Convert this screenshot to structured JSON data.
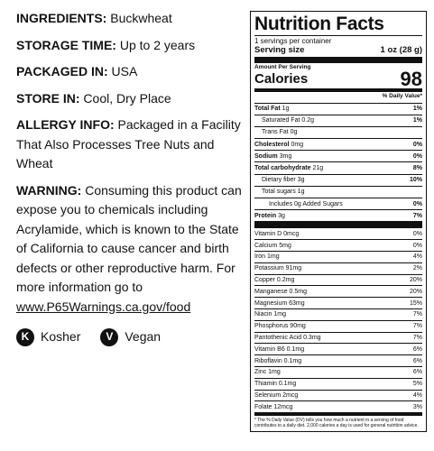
{
  "info": [
    {
      "label": "INGREDIENTS:",
      "text": "Buckwheat"
    },
    {
      "label": "STORAGE TIME:",
      "text": "Up to 2 years"
    },
    {
      "label": "PACKAGED IN:",
      "text": "USA"
    },
    {
      "label": "STORE IN:",
      "text": "Cool, Dry Place"
    },
    {
      "label": "ALLERGY INFO:",
      "text": "Packaged in a Facility That Also Processes Tree Nuts and Wheat"
    },
    {
      "label": "WARNING:",
      "text": "Consuming this product can expose you to chemicals including Acrylamide, which is known to the State of California to cause cancer and birth defects or other reproductive harm. For more information go to",
      "link": "www.P65Warnings.ca.gov/food"
    }
  ],
  "badges": [
    {
      "icon": "K",
      "label": "Kosher"
    },
    {
      "icon": "V",
      "label": "Vegan"
    }
  ],
  "nutrition": {
    "title": "Nutrition Facts",
    "servings": "1 servings per container",
    "serving_size_label": "Serving size",
    "serving_size": "1 oz (28 g)",
    "amount_per_serving": "Amount Per Serving",
    "calories_label": "Calories",
    "calories": "98",
    "dv_header": "% Daily Value*",
    "macros": [
      {
        "name": "Total Fat",
        "amount": "1g",
        "dv": "1%"
      },
      {
        "name": "Saturated Fat 0.2g",
        "dv": "1%"
      },
      {
        "name": "Trans Fat 0g"
      },
      {
        "name": "Cholesterol",
        "amount": "0mg",
        "dv": "0%"
      },
      {
        "name": "Sodium",
        "amount": "3mg",
        "dv": "0%"
      },
      {
        "name": "Total carbohydrate",
        "amount": "21g",
        "dv": "8%"
      },
      {
        "name": "Dietary fiber 3g",
        "dv": "10%"
      },
      {
        "name": "Total sugars 1g"
      },
      {
        "name": "Includes 0g Added Sugars",
        "dv": "0%"
      },
      {
        "name": "Protein",
        "amount": "3g",
        "dv": "7%"
      }
    ],
    "vitamins": [
      {
        "name": "Vitamin D 0mcg",
        "dv": "0%"
      },
      {
        "name": "Calcium 5mg",
        "dv": "0%"
      },
      {
        "name": "Iron 1mg",
        "dv": "4%"
      },
      {
        "name": "Potassium 91mg",
        "dv": "2%"
      },
      {
        "name": "Copper 0.2mg",
        "dv": "20%"
      },
      {
        "name": "Manganese 0.5mg",
        "dv": "20%"
      },
      {
        "name": "Magnesium 63mg",
        "dv": "15%"
      },
      {
        "name": "Niacin 1mg",
        "dv": "7%"
      },
      {
        "name": "Phosphorus 90mg",
        "dv": "7%"
      },
      {
        "name": "Pantothenic Acid 0.3mg",
        "dv": "7%"
      },
      {
        "name": "Vitamin B6 0.1mg",
        "dv": "6%"
      },
      {
        "name": "Riboflavin 0.1mg",
        "dv": "6%"
      },
      {
        "name": "Zinc 1mg",
        "dv": "6%"
      },
      {
        "name": "Thiamin 0.1mg",
        "dv": "5%"
      },
      {
        "name": "Selenium 2mcg",
        "dv": "4%"
      },
      {
        "name": "Folate 12mcg",
        "dv": "3%"
      }
    ],
    "footnote": "* The % Daily Value (DV) tells you how much a nutrient in a serving of food contributes to a daily diet. 2,000 calories a day is used for general nutrition advice."
  }
}
